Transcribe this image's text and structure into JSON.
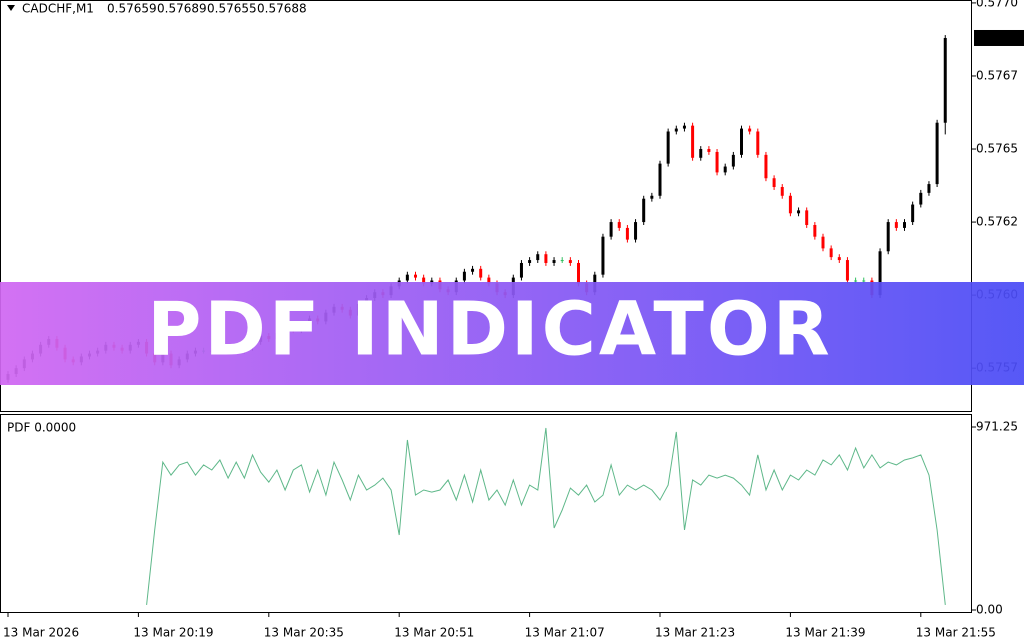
{
  "chart_data": [
    {
      "type": "candlestick",
      "title": "CADCHF,M1",
      "ylim": [
        0.5756,
        0.57701
      ],
      "yticks": [
        {
          "value": 0.577,
          "label": "0.5770"
        },
        {
          "value": 0.57675,
          "label": "0.5767"
        },
        0.5765,
        {
          "value": 0.57625,
          "label": "0.5762"
        },
        {
          "value": 0.576,
          "label": "0.5760"
        },
        {
          "value": 0.57575,
          "label": "0.5757"
        }
      ],
      "up_color": "#000000",
      "down_color": "#ff0000",
      "doji_color": "#2fbf5f",
      "open": [
        0.57571,
        0.57573,
        0.57575,
        0.57578,
        0.5758,
        0.57583,
        0.57585,
        0.57582,
        0.57578,
        0.57577,
        0.57579,
        0.5758,
        0.57581,
        0.57583,
        0.57582,
        0.57581,
        0.57583,
        0.57584,
        0.5758,
        0.57577,
        0.5758,
        0.57576,
        0.57578,
        0.5758,
        0.57581,
        0.57581,
        0.57581,
        0.57581,
        0.57581,
        0.57581,
        0.57582,
        0.57584,
        0.57586,
        0.57585,
        0.57587,
        0.57589,
        0.57588,
        0.5759,
        0.57592,
        0.57591,
        0.57594,
        0.57596,
        0.57595,
        0.57593,
        0.57597,
        0.57599,
        0.57601,
        0.576,
        0.57603,
        0.57605,
        0.57607,
        0.57606,
        0.57604,
        0.57605,
        0.57602,
        0.57601,
        0.57605,
        0.57608,
        0.57609,
        0.57606,
        0.57604,
        0.57601,
        0.576,
        0.57606,
        0.57611,
        0.57612,
        0.57614,
        0.57611,
        0.57612,
        0.57612,
        0.57611,
        0.57604,
        0.57601,
        0.57607,
        0.5762,
        0.57625,
        0.57623,
        0.57619,
        0.57625,
        0.57633,
        0.57634,
        0.57645,
        0.57656,
        0.57657,
        0.57658,
        0.57647,
        0.5765,
        0.57649,
        0.57642,
        0.57644,
        0.57648,
        0.57657,
        0.57656,
        0.57648,
        0.5764,
        0.57637,
        0.57634,
        0.57628,
        0.57629,
        0.57624,
        0.5762,
        0.57616,
        0.57613,
        0.57612,
        0.57605,
        0.57605,
        0.57605,
        0.576,
        0.57615,
        0.57625,
        0.57623,
        0.57625,
        0.57631,
        0.57635,
        0.57638,
        0.57659
      ],
      "high": [
        0.57574,
        0.57576,
        0.57579,
        0.57581,
        0.57584,
        0.57586,
        0.57586,
        0.57583,
        0.57579,
        0.5758,
        0.57581,
        0.57582,
        0.57584,
        0.57584,
        0.57583,
        0.57584,
        0.57585,
        0.57585,
        0.57581,
        0.57581,
        0.57581,
        0.57579,
        0.57581,
        0.57582,
        0.57582,
        0.57582,
        0.57582,
        0.57582,
        0.57582,
        0.57583,
        0.57585,
        0.57587,
        0.57587,
        0.57588,
        0.5759,
        0.5759,
        0.57591,
        0.57593,
        0.57593,
        0.57595,
        0.57597,
        0.57597,
        0.57596,
        0.57598,
        0.576,
        0.57602,
        0.57602,
        0.57604,
        0.57606,
        0.57608,
        0.57608,
        0.57607,
        0.57606,
        0.57606,
        0.57603,
        0.57606,
        0.57609,
        0.5761,
        0.5761,
        0.57607,
        0.57605,
        0.57602,
        0.57607,
        0.57612,
        0.57613,
        0.57615,
        0.57615,
        0.57613,
        0.57613,
        0.57613,
        0.57612,
        0.57605,
        0.57608,
        0.57621,
        0.57626,
        0.57626,
        0.57624,
        0.57626,
        0.57634,
        0.57635,
        0.57646,
        0.57657,
        0.57658,
        0.57659,
        0.57659,
        0.57651,
        0.57651,
        0.5765,
        0.57645,
        0.57649,
        0.57658,
        0.57658,
        0.57657,
        0.57649,
        0.57641,
        0.57638,
        0.57635,
        0.5763,
        0.5763,
        0.57625,
        0.57621,
        0.57617,
        0.57614,
        0.57613,
        0.57606,
        0.57606,
        0.57606,
        0.57616,
        0.57626,
        0.57626,
        0.57626,
        0.57632,
        0.57636,
        0.57639,
        0.5766,
        0.57689
      ],
      "low": [
        0.5757,
        0.57572,
        0.57574,
        0.57577,
        0.57579,
        0.57582,
        0.57581,
        0.57577,
        0.57576,
        0.57576,
        0.57578,
        0.57579,
        0.5758,
        0.57581,
        0.5758,
        0.5758,
        0.57582,
        0.57579,
        0.57576,
        0.57576,
        0.57575,
        0.57575,
        0.57577,
        0.57579,
        0.5758,
        0.5758,
        0.5758,
        0.5758,
        0.5758,
        0.5758,
        0.57581,
        0.57583,
        0.57584,
        0.57584,
        0.57586,
        0.57587,
        0.57587,
        0.57589,
        0.5759,
        0.5759,
        0.57593,
        0.57594,
        0.57592,
        0.57592,
        0.57596,
        0.57598,
        0.57599,
        0.57599,
        0.57602,
        0.57604,
        0.57605,
        0.57603,
        0.57603,
        0.57601,
        0.576,
        0.576,
        0.57604,
        0.57607,
        0.57605,
        0.57603,
        0.576,
        0.57599,
        0.57599,
        0.57605,
        0.5761,
        0.57611,
        0.5761,
        0.5761,
        0.57611,
        0.5761,
        0.57603,
        0.576,
        0.576,
        0.57606,
        0.57619,
        0.57622,
        0.57618,
        0.57618,
        0.57624,
        0.57632,
        0.57633,
        0.57644,
        0.57655,
        0.57656,
        0.57646,
        0.57646,
        0.57648,
        0.57641,
        0.57641,
        0.57643,
        0.57647,
        0.57655,
        0.57647,
        0.57639,
        0.57636,
        0.57633,
        0.57627,
        0.57627,
        0.57623,
        0.57619,
        0.57615,
        0.57612,
        0.57611,
        0.57604,
        0.57604,
        0.57604,
        0.57599,
        0.57599,
        0.57614,
        0.57622,
        0.57622,
        0.57624,
        0.5763,
        0.57634,
        0.57637,
        0.57655
      ],
      "close": [
        0.57573,
        0.57575,
        0.57578,
        0.5758,
        0.57583,
        0.57585,
        0.57582,
        0.57578,
        0.57577,
        0.57579,
        0.5758,
        0.57581,
        0.57583,
        0.57582,
        0.57581,
        0.57583,
        0.57584,
        0.5758,
        0.57577,
        0.5758,
        0.57576,
        0.57578,
        0.5758,
        0.57581,
        0.57581,
        0.57581,
        0.57581,
        0.57581,
        0.57581,
        0.57582,
        0.57584,
        0.57586,
        0.57585,
        0.57587,
        0.57589,
        0.57588,
        0.5759,
        0.57592,
        0.57591,
        0.57594,
        0.57596,
        0.57595,
        0.57593,
        0.57597,
        0.57599,
        0.57601,
        0.576,
        0.57603,
        0.57605,
        0.57607,
        0.57606,
        0.57604,
        0.57605,
        0.57602,
        0.57601,
        0.57605,
        0.57608,
        0.57609,
        0.57606,
        0.57604,
        0.57601,
        0.576,
        0.57606,
        0.57611,
        0.57612,
        0.57614,
        0.57611,
        0.57612,
        0.57612,
        0.57611,
        0.57604,
        0.57601,
        0.57607,
        0.5762,
        0.57625,
        0.57623,
        0.57619,
        0.57625,
        0.57633,
        0.57634,
        0.57645,
        0.57656,
        0.57657,
        0.57658,
        0.57647,
        0.5765,
        0.57649,
        0.57642,
        0.57644,
        0.57648,
        0.57657,
        0.57656,
        0.57648,
        0.5764,
        0.57637,
        0.57634,
        0.57628,
        0.57629,
        0.57624,
        0.5762,
        0.57616,
        0.57613,
        0.57612,
        0.57605,
        0.57605,
        0.57605,
        0.576,
        0.57615,
        0.57625,
        0.57623,
        0.57625,
        0.57631,
        0.57635,
        0.57638,
        0.57659,
        0.57688
      ]
    },
    {
      "type": "line",
      "title": "PDF 0.0000",
      "color": "#5fb88a",
      "ylim": [
        0,
        971.25
      ],
      "yticks": [
        {
          "value": 0,
          "label": "0.00"
        },
        971.25
      ],
      "categories": [
        "13 Mar 2026",
        null,
        null,
        null,
        null,
        null,
        null,
        null,
        null,
        null,
        null,
        null,
        null,
        null,
        null,
        null,
        "13 Mar 20:19",
        null,
        null,
        null,
        null,
        null,
        null,
        null,
        null,
        null,
        null,
        null,
        null,
        null,
        null,
        null,
        "13 Mar 20:35",
        null,
        null,
        null,
        null,
        null,
        null,
        null,
        null,
        null,
        null,
        null,
        null,
        null,
        null,
        null,
        "13 Mar 20:51",
        null,
        null,
        null,
        null,
        null,
        null,
        null,
        null,
        null,
        null,
        null,
        null,
        null,
        null,
        null,
        "13 Mar 21:07",
        null,
        null,
        null,
        null,
        null,
        null,
        null,
        null,
        null,
        null,
        null,
        null,
        null,
        null,
        null,
        "13 Mar 21:23",
        null,
        null,
        null,
        null,
        null,
        null,
        null,
        null,
        null,
        null,
        null,
        null,
        null,
        null,
        null,
        "13 Mar 21:39",
        null,
        null,
        null,
        null,
        null,
        null,
        null,
        null,
        null,
        null,
        null,
        null,
        null,
        null,
        null,
        "13 Mar 21:55",
        null,
        null,
        null
      ],
      "values": [
        null,
        null,
        null,
        null,
        null,
        null,
        null,
        null,
        null,
        null,
        null,
        null,
        null,
        null,
        null,
        null,
        null,
        27,
        425,
        785,
        716,
        770,
        785,
        716,
        770,
        743,
        796,
        700,
        785,
        700,
        823,
        732,
        679,
        743,
        637,
        743,
        770,
        626,
        743,
        610,
        785,
        690,
        584,
        716,
        637,
        663,
        700,
        637,
        398,
        902,
        610,
        637,
        626,
        637,
        690,
        584,
        716,
        573,
        743,
        584,
        637,
        557,
        690,
        557,
        663,
        637,
        966,
        435,
        531,
        647,
        610,
        663,
        573,
        610,
        770,
        610,
        663,
        637,
        663,
        637,
        584,
        663,
        945,
        425,
        690,
        663,
        716,
        700,
        716,
        700,
        663,
        610,
        823,
        637,
        743,
        637,
        716,
        690,
        743,
        716,
        796,
        770,
        823,
        743,
        860,
        754,
        823,
        754,
        785,
        770,
        796,
        807,
        823,
        716,
        425,
        27
      ]
    }
  ],
  "banner": {
    "title": "PDF INDICATOR"
  }
}
